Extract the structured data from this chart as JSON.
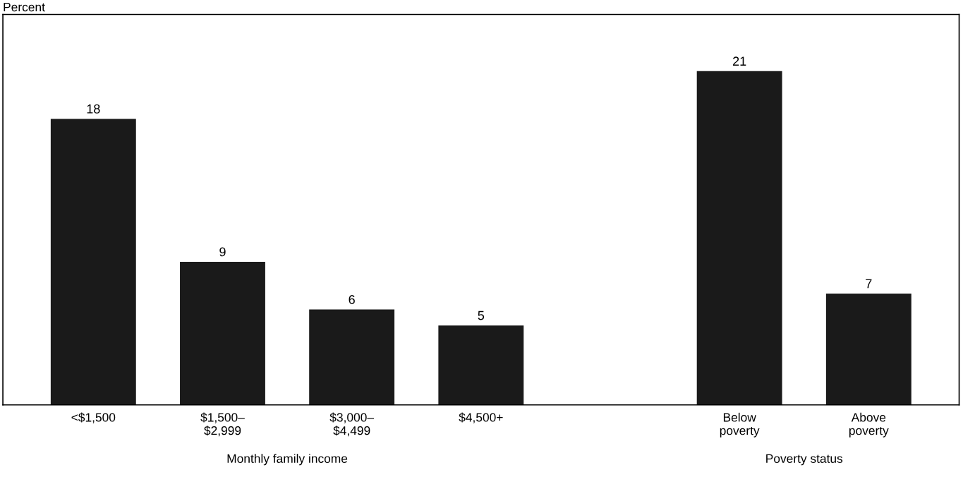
{
  "chart_data": {
    "type": "bar",
    "ylabel": "Percent",
    "categories": [
      "<$1,500",
      "$1,500–\n$2,999",
      "$3,000–\n$4,499",
      "$4,500+",
      null,
      "Below\npoverty",
      "Above\npoverty"
    ],
    "values": [
      18,
      9,
      6,
      5,
      null,
      21,
      7
    ],
    "color": "#1a1a1a",
    "data_labels": true,
    "grid": false,
    "legend": false,
    "annotations": [
      "Monthly family income",
      "Poverty status"
    ]
  }
}
